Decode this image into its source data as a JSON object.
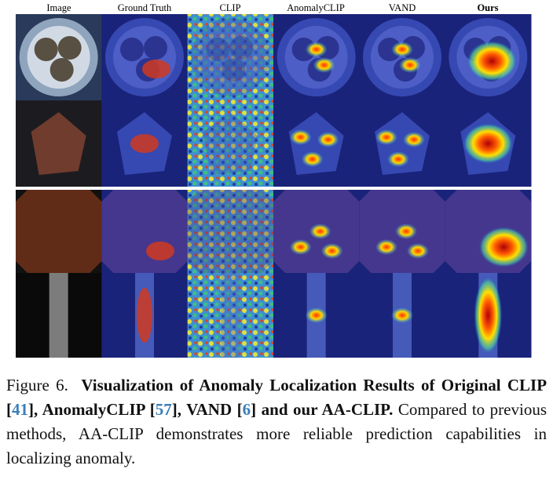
{
  "figure": {
    "columns": [
      "Image",
      "Ground Truth",
      "CLIP",
      "AnomalyCLIP",
      "VAND",
      "Ours"
    ],
    "caption": {
      "label": "Figure 6.",
      "title": [
        "Visualization of Anomaly Localization Results of Original CLIP [",
        "41",
        "], AnomalyCLIP [",
        "57",
        "], VAND [",
        "6",
        "] and our AA-CLIP."
      ],
      "body": "Compared to previous methods, AA-CLIP demonstrates more reliable prediction capabilities in localizing anomaly."
    }
  }
}
